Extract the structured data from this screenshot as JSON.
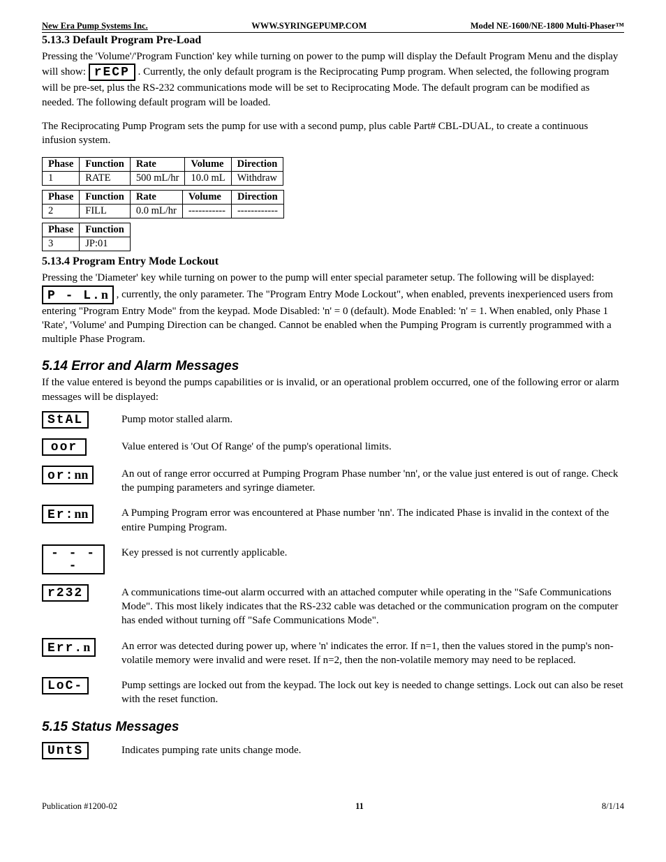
{
  "header": {
    "left": "New Era Pump Systems Inc.",
    "center": "WWW.SYRINGEPUMP.COM",
    "right": "Model NE-1600/NE-1800 Multi-Phaser™"
  },
  "s5133": {
    "title": "5.13.3  Default Program Pre-Load",
    "p1a": "Pressing the 'Volume'/'Program Function' key while turning on power to the pump will display the Default Program Menu and the display will show: ",
    "lcd1": "rECP",
    "p1b": ".  Currently, the only default program is the Reciprocating Pump program.   When selected, the following program will be pre-set, plus the RS-232 communications mode will be set to Reciprocating Mode.  The default program can be modified as needed.  The following default program will be loaded.",
    "p2": "The Reciprocating Pump Program sets the pump for use with a second pump, plus cable Part# CBL-DUAL, to create a continuous infusion system.",
    "table1": {
      "headers": [
        "Phase",
        "Function",
        "Rate",
        "Volume",
        "Direction"
      ],
      "row": [
        "1",
        "RATE",
        "500 mL/hr",
        "10.0 mL",
        "Withdraw"
      ]
    },
    "table2": {
      "headers": [
        "Phase",
        "Function",
        "Rate",
        "Volume",
        "Direction"
      ],
      "row": [
        "2",
        "FILL",
        "0.0 mL/hr",
        "-----------",
        "------------"
      ]
    },
    "table3": {
      "headers": [
        "Phase",
        "Function"
      ],
      "row": [
        "3",
        "JP:01"
      ]
    }
  },
  "s5134": {
    "title": "5.13.4  Program Entry Mode Lockout",
    "p1a": "Pressing the 'Diameter' key while turning on power to the pump will enter special parameter setup.  The following will be displayed:  ",
    "lcd_prefix": "P - L.",
    "lcd_nn": "n",
    "p1b": ", currently, the only parameter.  The \"Program Entry Mode Lockout\", when enabled, prevents inexperienced users from entering \"Program Entry Mode\" from the keypad.  Mode Disabled:  'n' = 0 (default).  Mode Enabled:  'n' = 1.  When enabled, only Phase 1 'Rate', 'Volume' and Pumping Direction can be changed.  Cannot be enabled when the Pumping Program is currently programmed with a multiple Phase Program."
  },
  "s514": {
    "title": "5.14  Error and Alarm Messages",
    "intro": "If the value entered is beyond the pumps capabilities or is invalid, or an operational problem occurred, one of the following error or alarm messages will be displayed:",
    "rows": [
      {
        "lcd": "StAL",
        "nn": "",
        "txt": "Pump motor stalled alarm."
      },
      {
        "lcd": "oor",
        "nn": "",
        "txt": "Value entered is 'Out Of Range' of the pump's operational limits."
      },
      {
        "lcd": "or:",
        "nn": "nn",
        "txt": "An out of range error occurred at Pumping Program Phase number 'nn', or the value just entered is out of range.  Check the pumping parameters and syringe diameter."
      },
      {
        "lcd": "Er:",
        "nn": "nn",
        "txt": "A Pumping Program error was encountered at Phase number 'nn'.  The indicated Phase is invalid in the context of the entire Pumping Program."
      },
      {
        "lcd": "- - - -",
        "nn": "",
        "txt": "Key pressed is not currently applicable."
      },
      {
        "lcd": "r232",
        "nn": "",
        "txt": "A communications time-out alarm occurred with an attached computer while operating in the \"Safe Communications Mode\".  This most likely indicates that the RS-232 cable was detached or the communication program on the computer has ended without turning off \"Safe Communications Mode\"."
      },
      {
        "lcd": "Err.",
        "nn": "n",
        "txt": "An error was detected during power up, where 'n' indicates the error.  If n=1, then the values stored in the pump's non-volatile memory were invalid and were reset.  If n=2, then the non-volatile memory may need to be replaced."
      },
      {
        "lcd": "LoC-",
        "nn": "",
        "txt": "Pump settings are locked out from the keypad.  The lock out key is needed to change settings.  Lock out can also be reset with the reset function."
      }
    ]
  },
  "s515": {
    "title": "5.15  Status Messages",
    "rows": [
      {
        "lcd": "UntS",
        "nn": "",
        "txt": "Indicates pumping rate units change mode."
      }
    ]
  },
  "footer": {
    "left": "Publication #1200-02",
    "page": "11",
    "right": "8/1/14"
  }
}
